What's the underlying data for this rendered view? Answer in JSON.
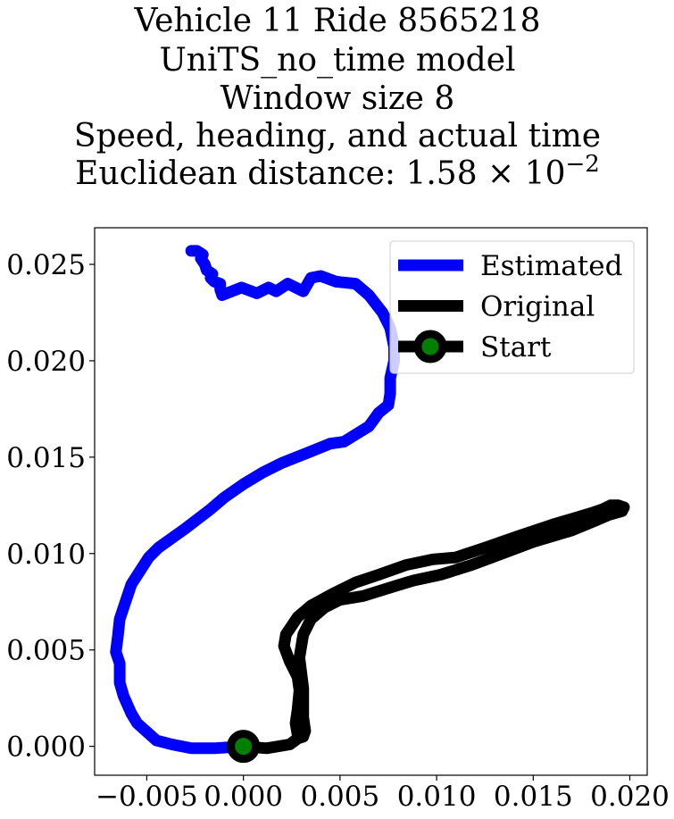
{
  "chart_data": {
    "type": "line",
    "title_lines": [
      "Vehicle 11 Ride 8565218",
      "UniTS_no_time model",
      "Window size 8",
      "Speed, heading, and actual time",
      "Euclidean distance: 1.58 × 10"
    ],
    "title_exponent": "−2",
    "xlabel": "",
    "ylabel": "",
    "xlim": [
      -0.0077,
      0.0209
    ],
    "ylim": [
      -0.0015,
      0.0269
    ],
    "xticks": [
      -0.005,
      0.0,
      0.005,
      0.01,
      0.015,
      0.02
    ],
    "xtick_labels": [
      "−0.005",
      "0.000",
      "0.005",
      "0.010",
      "0.015",
      "0.020"
    ],
    "yticks": [
      0.0,
      0.005,
      0.01,
      0.015,
      0.02,
      0.025
    ],
    "ytick_labels": [
      "0.000",
      "0.005",
      "0.010",
      "0.015",
      "0.020",
      "0.025"
    ],
    "grid": false,
    "legend_position": "upper right",
    "legend": [
      {
        "label": "Estimated",
        "color": "#0000ff"
      },
      {
        "label": "Original",
        "color": "#000000"
      },
      {
        "label": "Start",
        "color": "#000000",
        "marker_face": "#008000"
      }
    ],
    "series": [
      {
        "name": "Estimated",
        "color": "#0000ff",
        "points": [
          [
            0.0,
            0.0
          ],
          [
            -0.0015,
            -0.0001
          ],
          [
            -0.0027,
            -0.0001
          ],
          [
            -0.0037,
            0.0001
          ],
          [
            -0.0045,
            0.0003
          ],
          [
            -0.0055,
            0.0012
          ],
          [
            -0.0058,
            0.0017
          ],
          [
            -0.0062,
            0.0026
          ],
          [
            -0.0064,
            0.0033
          ],
          [
            -0.0064,
            0.0043
          ],
          [
            -0.0066,
            0.0049
          ],
          [
            -0.0065,
            0.0057
          ],
          [
            -0.0064,
            0.0066
          ],
          [
            -0.0058,
            0.0084
          ],
          [
            -0.0049,
            0.0098
          ],
          [
            -0.0044,
            0.0103
          ],
          [
            -0.003,
            0.0113
          ],
          [
            -0.0017,
            0.0123
          ],
          [
            -0.001,
            0.0129
          ],
          [
            0.0,
            0.0136
          ],
          [
            0.001,
            0.0142
          ],
          [
            0.002,
            0.0147
          ],
          [
            0.0035,
            0.0153
          ],
          [
            0.0045,
            0.0157
          ],
          [
            0.0052,
            0.0158
          ],
          [
            0.0065,
            0.0166
          ],
          [
            0.007,
            0.0173
          ],
          [
            0.0075,
            0.0177
          ],
          [
            0.0076,
            0.0183
          ],
          [
            0.0076,
            0.0191
          ],
          [
            0.0078,
            0.02
          ],
          [
            0.0078,
            0.0207
          ],
          [
            0.0076,
            0.0217
          ],
          [
            0.0072,
            0.0225
          ],
          [
            0.0065,
            0.0234
          ],
          [
            0.0058,
            0.024
          ],
          [
            0.0048,
            0.0241
          ],
          [
            0.004,
            0.0244
          ],
          [
            0.0035,
            0.0243
          ],
          [
            0.0031,
            0.0236
          ],
          [
            0.0023,
            0.024
          ],
          [
            0.0017,
            0.0236
          ],
          [
            0.0013,
            0.0238
          ],
          [
            0.0007,
            0.0235
          ],
          [
            -0.0001,
            0.0238
          ],
          [
            -0.0011,
            0.0234
          ],
          [
            -0.0012,
            0.0237
          ],
          [
            -0.0012,
            0.024
          ],
          [
            -0.0015,
            0.0241
          ],
          [
            -0.0017,
            0.0243
          ],
          [
            -0.0016,
            0.0245
          ],
          [
            -0.0019,
            0.0247
          ],
          [
            -0.002,
            0.025
          ],
          [
            -0.0022,
            0.0253
          ],
          [
            -0.0021,
            0.0255
          ],
          [
            -0.0024,
            0.0257
          ],
          [
            -0.0027,
            0.0257
          ]
        ]
      },
      {
        "name": "Original",
        "color": "#000000",
        "points": [
          [
            0.0,
            0.0
          ],
          [
            0.0012,
            -0.0001
          ],
          [
            0.0024,
            0.0001
          ],
          [
            0.0028,
            0.0004
          ],
          [
            0.0031,
            0.0005
          ],
          [
            0.0032,
            0.0008
          ],
          [
            0.0031,
            0.0015
          ],
          [
            0.0031,
            0.003
          ],
          [
            0.0029,
            0.0046
          ],
          [
            0.0031,
            0.0058
          ],
          [
            0.0035,
            0.0066
          ],
          [
            0.0042,
            0.0072
          ],
          [
            0.005,
            0.0076
          ],
          [
            0.0062,
            0.0078
          ],
          [
            0.0078,
            0.0083
          ],
          [
            0.0088,
            0.0086
          ],
          [
            0.0102,
            0.0089
          ],
          [
            0.0118,
            0.0094
          ],
          [
            0.0134,
            0.01
          ],
          [
            0.015,
            0.0106
          ],
          [
            0.017,
            0.0112
          ],
          [
            0.0182,
            0.0117
          ],
          [
            0.0189,
            0.012
          ],
          [
            0.0196,
            0.0122
          ],
          [
            0.0197,
            0.0124
          ],
          [
            0.0194,
            0.0125
          ],
          [
            0.019,
            0.0125
          ],
          [
            0.0186,
            0.0123
          ],
          [
            0.018,
            0.0121
          ],
          [
            0.016,
            0.0115
          ],
          [
            0.0142,
            0.0109
          ],
          [
            0.0125,
            0.0103
          ],
          [
            0.011,
            0.0098
          ],
          [
            0.0098,
            0.0097
          ],
          [
            0.0084,
            0.0094
          ],
          [
            0.007,
            0.0089
          ],
          [
            0.0058,
            0.0085
          ],
          [
            0.0046,
            0.0079
          ],
          [
            0.0035,
            0.0073
          ],
          [
            0.0028,
            0.0067
          ],
          [
            0.0022,
            0.0058
          ],
          [
            0.0021,
            0.0052
          ],
          [
            0.0024,
            0.0044
          ],
          [
            0.0028,
            0.0036
          ],
          [
            0.0029,
            0.0029
          ],
          [
            0.0028,
            0.0019
          ],
          [
            0.0027,
            0.0012
          ],
          [
            0.0028,
            0.0006
          ],
          [
            0.0031,
            0.0005
          ]
        ]
      }
    ],
    "start_point": {
      "name": "Start",
      "x": 0.0,
      "y": 0.0,
      "edge_color": "#000000",
      "face_color": "#008000"
    }
  }
}
